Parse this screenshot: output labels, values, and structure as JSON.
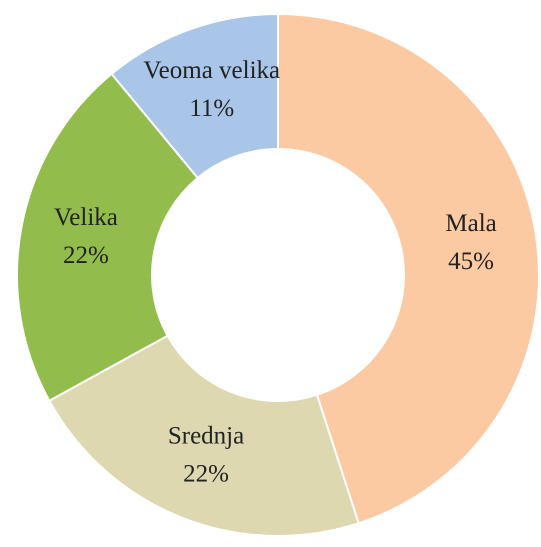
{
  "chart_data": {
    "type": "donut",
    "categories": [
      "Mala",
      "Srednja",
      "Velika",
      "Veoma velika"
    ],
    "values": [
      45,
      22,
      22,
      11
    ],
    "value_labels": [
      "45%",
      "22%",
      "22%",
      "11%"
    ],
    "colors": [
      "#fbc9a2",
      "#ddd8b0",
      "#92bd4c",
      "#a9c5e8"
    ]
  }
}
